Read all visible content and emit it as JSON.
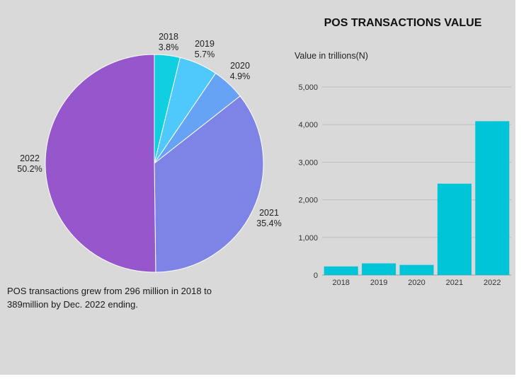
{
  "caption": {
    "line1": "POS transactions grew from 296 million in 2018 to",
    "line2": "389million by Dec. 2022 ending."
  },
  "chart_data": [
    {
      "type": "pie",
      "title": "",
      "legend": "none",
      "slices": [
        {
          "label": "2018",
          "value": 3.8,
          "display": "3.8%",
          "color": "#10cfe0"
        },
        {
          "label": "2019",
          "value": 5.7,
          "display": "5.7%",
          "color": "#4fc8fb"
        },
        {
          "label": "2020",
          "value": 4.9,
          "display": "4.9%",
          "color": "#66a3f5"
        },
        {
          "label": "2021",
          "value": 35.4,
          "display": "35.4%",
          "color": "#7d84e6"
        },
        {
          "label": "2022",
          "value": 50.2,
          "display": "50.2%",
          "color": "#9656cc"
        }
      ]
    },
    {
      "type": "bar",
      "title": "POS TRANSACTIONS VALUE",
      "ylabel": "Value in trillions(N)",
      "xlabel": "",
      "categories": [
        "2018",
        "2019",
        "2020",
        "2021",
        "2022"
      ],
      "values": [
        230,
        310,
        270,
        2430,
        4090
      ],
      "ylim": [
        0,
        5000
      ],
      "yticks": [
        "0",
        "1,000",
        "2,000",
        "3,000",
        "4,000",
        "5,000"
      ],
      "ytick_values": [
        0,
        1000,
        2000,
        3000,
        4000,
        5000
      ],
      "grid": true,
      "bar_color": "#00c5d9"
    }
  ]
}
